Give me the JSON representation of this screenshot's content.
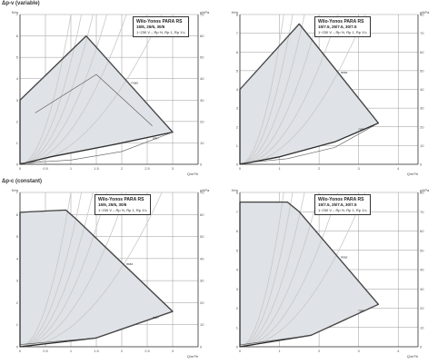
{
  "sections": [
    {
      "title": "Δp-v (variable)"
    },
    {
      "title": "Δp-c (constant)"
    }
  ],
  "colors": {
    "envelope_fill": "#dfe2e6",
    "envelope_stroke": "#2b2b2b",
    "grid": "#9a9a9a",
    "system_curve": "#c8c8c8",
    "speed_curve": "#555555"
  },
  "chart_data": [
    {
      "type": "line",
      "section": 0,
      "title": "Wilo-Yonos PARA RS",
      "subtitle": "15/6, 25/6, 30/6",
      "note": "1~230 V – Rp ½, Rp 1, Rp 1¼",
      "xlabel": "Q/m³/h",
      "ylabel": "H/m",
      "ylabel2": "p/kPa",
      "xlim": [
        0,
        3.5
      ],
      "ylim": [
        0,
        7
      ],
      "ylim2": [
        0,
        70
      ],
      "x_ticks": [
        0,
        0.5,
        1,
        1.5,
        2,
        2.5,
        3
      ],
      "y_ticks": [
        0,
        1,
        2,
        3,
        4,
        5,
        6,
        7
      ],
      "y2_ticks": [
        0,
        10,
        20,
        30,
        40,
        50,
        60,
        70
      ],
      "envelope": {
        "x": [
          0,
          0,
          1.3,
          3.0,
          1.8,
          0.6,
          0
        ],
        "y": [
          0,
          3.0,
          6.0,
          1.5,
          0.9,
          0.35,
          0
        ]
      },
      "speed_curves": [
        {
          "label": "max",
          "x": [
            0,
            1.3,
            3.0
          ],
          "y": [
            3.0,
            6.0,
            1.5
          ]
        },
        {
          "label": "Δp-v",
          "x": [
            0.3,
            1.5,
            2.6
          ],
          "y": [
            2.4,
            4.2,
            1.8
          ]
        },
        {
          "label": "min",
          "x": [
            0,
            1.0,
            2.0,
            3.0
          ],
          "y": [
            0.05,
            0.2,
            0.6,
            1.5
          ]
        }
      ],
      "curve_labels": [
        "max",
        "min"
      ],
      "system_curves": [
        0.9,
        1.6,
        2.4,
        3.4,
        4.8,
        7.0
      ]
    },
    {
      "type": "line",
      "section": 0,
      "title": "Wilo-Yonos PARA RS",
      "subtitle": "15/7.5, 25/7.5, 30/7.5",
      "note": "1~230 V – Rp ½, Rp 1, Rp 1¼",
      "xlabel": "Q/m³/h",
      "ylabel": "H/m",
      "ylabel2": "p/kPa",
      "xlim": [
        0,
        4.5
      ],
      "ylim": [
        0,
        8
      ],
      "ylim2": [
        0,
        80
      ],
      "x_ticks": [
        0,
        1,
        2,
        3,
        4
      ],
      "y_ticks": [
        0,
        1,
        2,
        3,
        4,
        5,
        6,
        7,
        8
      ],
      "y2_ticks": [
        0,
        10,
        20,
        30,
        40,
        50,
        60,
        70,
        80
      ],
      "envelope": {
        "x": [
          0,
          0,
          1.5,
          3.5,
          2.4,
          1.0,
          0
        ],
        "y": [
          0,
          4.0,
          7.5,
          2.2,
          1.2,
          0.4,
          0
        ]
      },
      "speed_curves": [
        {
          "label": "max",
          "x": [
            0,
            1.5,
            3.5
          ],
          "y": [
            4.0,
            7.5,
            2.2
          ]
        },
        {
          "label": "min",
          "x": [
            0,
            1.2,
            2.4,
            3.5
          ],
          "y": [
            0.05,
            0.3,
            0.9,
            2.2
          ]
        }
      ],
      "curve_labels": [
        "max",
        "min"
      ],
      "system_curves": [
        0.8,
        1.3,
        2.0,
        3.0,
        4.5,
        6.5
      ]
    },
    {
      "type": "line",
      "section": 1,
      "title": "Wilo-Yonos PARA RS",
      "subtitle": "15/6, 25/6, 30/6",
      "note": "1~230 V – Rp ½, Rp 1, Rp 1¼",
      "xlabel": "Q/m³/h",
      "ylabel": "H/m",
      "ylabel2": "p/kPa",
      "xlim": [
        0,
        3.5
      ],
      "ylim": [
        0,
        7
      ],
      "ylim2": [
        0,
        70
      ],
      "x_ticks": [
        0,
        0.5,
        1,
        1.5,
        2,
        2.5,
        3
      ],
      "y_ticks": [
        0,
        1,
        2,
        3,
        4,
        5,
        6,
        7
      ],
      "y2_ticks": [
        0,
        10,
        20,
        30,
        40,
        50,
        60,
        70
      ],
      "envelope": {
        "x": [
          0,
          0,
          0.9,
          1.1,
          3.0,
          1.5,
          0
        ],
        "y": [
          0,
          6.1,
          6.2,
          5.8,
          1.6,
          0.4,
          0
        ]
      },
      "speed_curves": [
        {
          "label": "max",
          "x": [
            0,
            0.9,
            1.1,
            3.0
          ],
          "y": [
            6.1,
            6.2,
            5.8,
            1.6
          ]
        },
        {
          "label": "min",
          "x": [
            0,
            1.5,
            3.0
          ],
          "y": [
            0.1,
            0.4,
            1.6
          ]
        }
      ],
      "curve_labels": [
        "max",
        "min"
      ],
      "system_curves": [
        0.9,
        1.6,
        2.4,
        3.4,
        4.8,
        7.0
      ]
    },
    {
      "type": "line",
      "section": 1,
      "title": "Wilo-Yonos PARA RS",
      "subtitle": "15/7.5, 25/7.5, 30/7.5",
      "note": "1~230 V – Rp ½, Rp 1, Rp 1¼",
      "xlabel": "Q/m³/h",
      "ylabel": "H/m",
      "ylabel2": "p/kPa",
      "xlim": [
        0,
        4.5
      ],
      "ylim": [
        0,
        8
      ],
      "ylim2": [
        0,
        80
      ],
      "x_ticks": [
        0,
        1,
        2,
        3,
        4
      ],
      "y_ticks": [
        0,
        1,
        2,
        3,
        4,
        5,
        6,
        7,
        8
      ],
      "y2_ticks": [
        0,
        10,
        20,
        30,
        40,
        50,
        60,
        70,
        80
      ],
      "envelope": {
        "x": [
          0,
          0,
          1.2,
          1.5,
          3.5,
          1.8,
          0
        ],
        "y": [
          0,
          7.5,
          7.5,
          7.0,
          2.2,
          0.6,
          0
        ]
      },
      "speed_curves": [
        {
          "label": "max",
          "x": [
            0,
            1.2,
            1.5,
            3.5
          ],
          "y": [
            7.5,
            7.5,
            7.0,
            2.2
          ]
        },
        {
          "label": "min",
          "x": [
            0,
            1.8,
            3.5
          ],
          "y": [
            0.1,
            0.6,
            2.2
          ]
        }
      ],
      "curve_labels": [
        "max",
        "min"
      ],
      "system_curves": [
        0.8,
        1.3,
        2.0,
        3.0,
        4.5,
        6.5
      ]
    }
  ]
}
